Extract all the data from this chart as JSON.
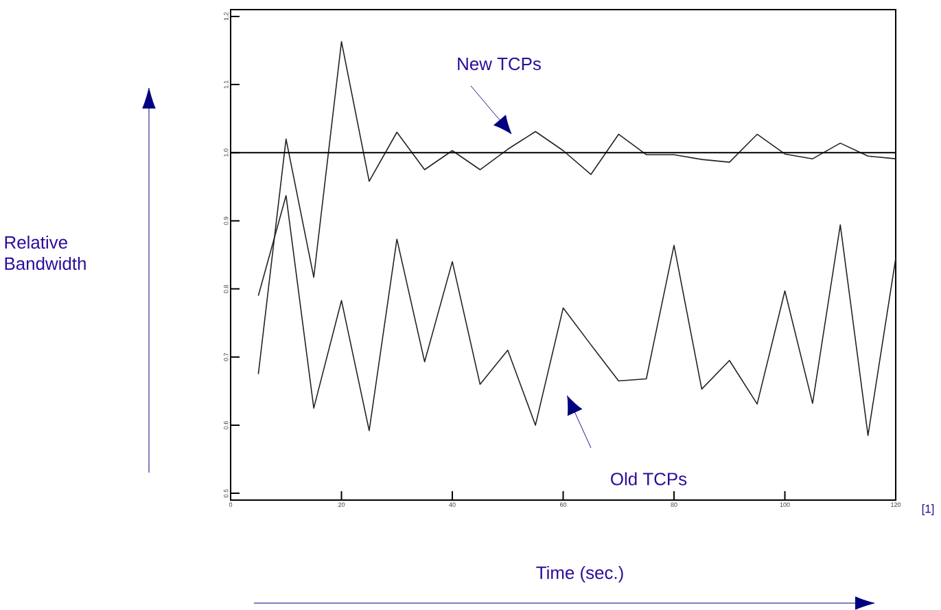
{
  "chart_data": {
    "type": "line",
    "xlabel": "Time (sec.)",
    "x": [
      5,
      10,
      15,
      20,
      25,
      30,
      35,
      40,
      45,
      50,
      55,
      60,
      65,
      70,
      75,
      80,
      85,
      90,
      95,
      100,
      105,
      110,
      115,
      120
    ],
    "series": [
      {
        "color": "#222222",
        "values": [
          0.675,
          1.02,
          0.817,
          1.163,
          0.958,
          1.03,
          0.975,
          1.003,
          0.975,
          1.005,
          1.031,
          1.003,
          0.968,
          1.027,
          0.997,
          0.997,
          0.99,
          0.986,
          1.027,
          0.998,
          0.991,
          1.014,
          0.995,
          0.991
        ]
      },
      {
        "color": "#222222",
        "values": [
          0.79,
          0.937,
          0.625,
          0.783,
          0.592,
          0.873,
          0.693,
          0.84,
          0.66,
          0.71,
          0.6,
          0.772,
          0.718,
          0.665,
          0.668,
          0.864,
          0.653,
          0.695,
          0.631,
          0.797,
          0.632,
          0.894,
          0.585,
          0.845
        ]
      }
    ],
    "xlim": [
      0,
      120
    ],
    "ylim": [
      0.49,
      1.21
    ],
    "xticks": [
      0,
      20,
      40,
      60,
      80,
      100,
      120
    ],
    "yticks": [
      {
        "value": 0.5,
        "label": "0.5"
      },
      {
        "value": 0.6,
        "label": "0.6"
      },
      {
        "value": 0.7,
        "label": "0.7"
      },
      {
        "value": 0.8,
        "label": "0.8"
      },
      {
        "value": 0.9,
        "label": "0.9"
      },
      {
        "value": 1.0,
        "label": "1.0"
      },
      {
        "value": 1.1,
        "label": "1.1"
      },
      {
        "value": 1.2,
        "label": "1.2"
      }
    ],
    "ref_lines": [
      {
        "axis": "y",
        "value": 1.0,
        "color": "#000000"
      }
    ],
    "annotations": [
      "New TCPs",
      "Old TCPs",
      "[1]",
      "Relative Bandwidth"
    ],
    "marker": "none",
    "line_style": "solid"
  }
}
